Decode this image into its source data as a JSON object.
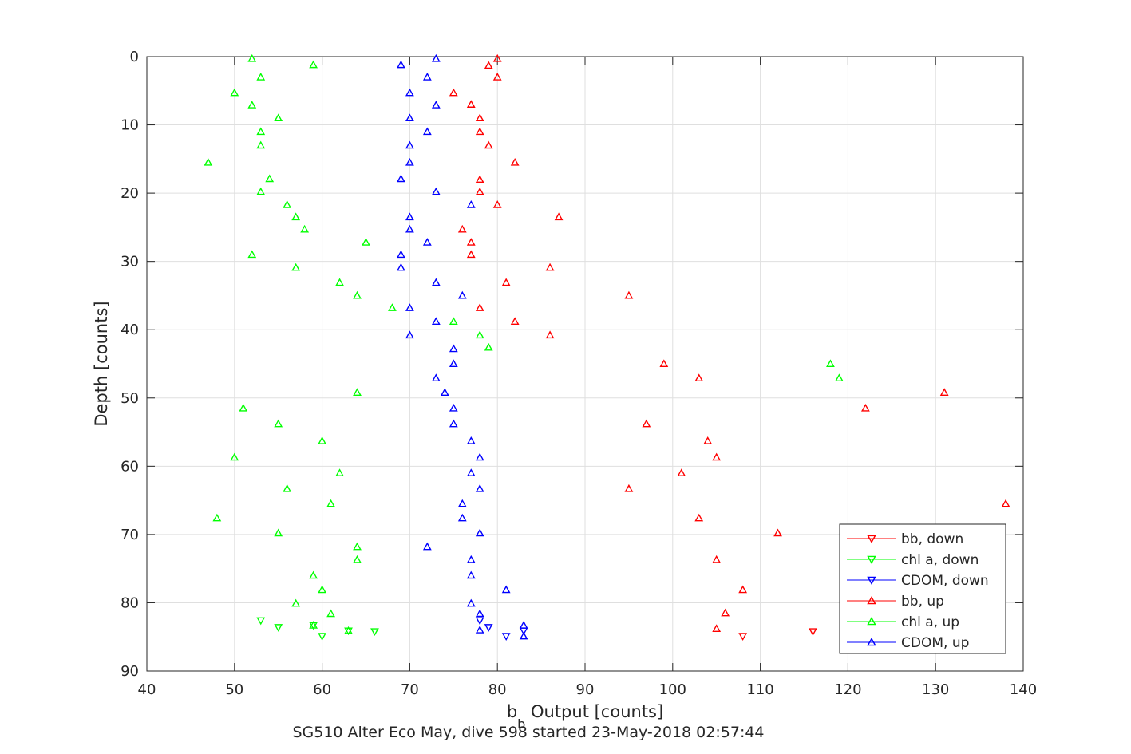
{
  "chart_data": {
    "type": "scatter",
    "xlabel": "b_b Output [counts]",
    "xlabel_main": "b",
    "xlabel_sub": "b",
    "xlabel_rest": " Output [counts]",
    "ylabel": "Depth [counts]",
    "footer": "SG510 Alter Eco May, dive 598 started 23-May-2018 02:57:44",
    "xlim": [
      40,
      140
    ],
    "ylim": [
      0,
      90
    ],
    "y_reversed": true,
    "xticks": [
      40,
      50,
      60,
      70,
      80,
      90,
      100,
      110,
      120,
      130,
      140
    ],
    "yticks": [
      0,
      10,
      20,
      30,
      40,
      50,
      60,
      70,
      80,
      90
    ],
    "grid": true,
    "legend_position": "bottom-right",
    "series": [
      {
        "name": "bb, down",
        "color": "#ff0000",
        "marker": "triangle-down",
        "points": [
          [
            116,
            84.2
          ],
          [
            108,
            84.9
          ]
        ]
      },
      {
        "name": "chl a, down",
        "color": "#00ff00",
        "marker": "triangle-down",
        "points": [
          [
            53,
            82.6
          ],
          [
            55,
            83.6
          ],
          [
            59,
            83.3
          ],
          [
            60,
            84.9
          ],
          [
            63,
            84.1
          ],
          [
            66,
            84.2
          ]
        ]
      },
      {
        "name": "CDOM, down",
        "color": "#0000ff",
        "marker": "triangle-down",
        "points": [
          [
            78,
            82.6
          ],
          [
            79,
            83.6
          ],
          [
            81,
            84.9
          ],
          [
            83,
            84.1
          ]
        ]
      },
      {
        "name": "bb, up",
        "color": "#ff0000",
        "marker": "triangle-up",
        "points": [
          [
            80,
            0.3
          ],
          [
            79,
            1.3
          ],
          [
            80,
            3.0
          ],
          [
            75,
            5.3
          ],
          [
            77,
            7.0
          ],
          [
            78,
            9.0
          ],
          [
            78,
            11.0
          ],
          [
            79,
            13.0
          ],
          [
            82,
            15.5
          ],
          [
            78,
            18.0
          ],
          [
            78,
            19.8
          ],
          [
            80,
            21.7
          ],
          [
            87,
            23.5
          ],
          [
            76,
            25.3
          ],
          [
            77,
            27.2
          ],
          [
            77,
            29.0
          ],
          [
            86,
            30.9
          ],
          [
            81,
            33.1
          ],
          [
            95,
            35.0
          ],
          [
            78,
            36.8
          ],
          [
            82,
            38.8
          ],
          [
            86,
            40.8
          ],
          [
            99,
            45.0
          ],
          [
            103,
            47.1
          ],
          [
            131,
            49.2
          ],
          [
            122,
            51.5
          ],
          [
            97,
            53.8
          ],
          [
            104,
            56.3
          ],
          [
            105,
            58.7
          ],
          [
            101,
            61.0
          ],
          [
            95,
            63.3
          ],
          [
            138,
            65.5
          ],
          [
            103,
            67.6
          ],
          [
            112,
            69.8
          ],
          [
            105,
            73.7
          ],
          [
            108,
            78.1
          ],
          [
            106,
            81.5
          ],
          [
            105,
            83.8
          ]
        ]
      },
      {
        "name": "chl a, up",
        "color": "#00ff00",
        "marker": "triangle-up",
        "points": [
          [
            52,
            0.3
          ],
          [
            59,
            1.2
          ],
          [
            53,
            3.0
          ],
          [
            50,
            5.3
          ],
          [
            52,
            7.1
          ],
          [
            55,
            9.0
          ],
          [
            53,
            11.0
          ],
          [
            53,
            13.0
          ],
          [
            47,
            15.5
          ],
          [
            54,
            17.9
          ],
          [
            53,
            19.8
          ],
          [
            56,
            21.7
          ],
          [
            57,
            23.5
          ],
          [
            58,
            25.3
          ],
          [
            65,
            27.2
          ],
          [
            52,
            29.0
          ],
          [
            57,
            30.9
          ],
          [
            62,
            33.1
          ],
          [
            64,
            35.0
          ],
          [
            68,
            36.8
          ],
          [
            75,
            38.8
          ],
          [
            78,
            40.8
          ],
          [
            79,
            42.6
          ],
          [
            118,
            45.0
          ],
          [
            119,
            47.1
          ],
          [
            64,
            49.2
          ],
          [
            51,
            51.5
          ],
          [
            55,
            53.8
          ],
          [
            60,
            56.3
          ],
          [
            50,
            58.7
          ],
          [
            62,
            61.0
          ],
          [
            56,
            63.3
          ],
          [
            61,
            65.5
          ],
          [
            48,
            67.6
          ],
          [
            55,
            69.8
          ],
          [
            64,
            71.8
          ],
          [
            64,
            73.7
          ],
          [
            59,
            76.0
          ],
          [
            60,
            78.1
          ],
          [
            57,
            80.1
          ],
          [
            61,
            81.6
          ],
          [
            59,
            83.3
          ],
          [
            63,
            84.1
          ]
        ]
      },
      {
        "name": "CDOM, up",
        "color": "#0000ff",
        "marker": "triangle-up",
        "points": [
          [
            73,
            0.3
          ],
          [
            69,
            1.2
          ],
          [
            72,
            3.0
          ],
          [
            70,
            5.3
          ],
          [
            73,
            7.1
          ],
          [
            70,
            9.0
          ],
          [
            72,
            11.0
          ],
          [
            70,
            13.0
          ],
          [
            70,
            15.5
          ],
          [
            69,
            17.9
          ],
          [
            73,
            19.8
          ],
          [
            77,
            21.7
          ],
          [
            70,
            23.5
          ],
          [
            70,
            25.3
          ],
          [
            72,
            27.2
          ],
          [
            69,
            29.0
          ],
          [
            69,
            30.9
          ],
          [
            73,
            33.1
          ],
          [
            76,
            35.0
          ],
          [
            70,
            36.8
          ],
          [
            73,
            38.8
          ],
          [
            70,
            40.8
          ],
          [
            75,
            42.8
          ],
          [
            75,
            45.0
          ],
          [
            73,
            47.1
          ],
          [
            74,
            49.2
          ],
          [
            75,
            51.5
          ],
          [
            75,
            53.8
          ],
          [
            77,
            56.3
          ],
          [
            78,
            58.7
          ],
          [
            77,
            61.0
          ],
          [
            78,
            63.3
          ],
          [
            76,
            65.5
          ],
          [
            76,
            67.6
          ],
          [
            78,
            69.8
          ],
          [
            72,
            71.8
          ],
          [
            77,
            73.7
          ],
          [
            77,
            76.0
          ],
          [
            81,
            78.1
          ],
          [
            77,
            80.1
          ],
          [
            78,
            81.6
          ],
          [
            78,
            84.0
          ],
          [
            83,
            83.3
          ],
          [
            83,
            84.9
          ]
        ]
      }
    ]
  }
}
